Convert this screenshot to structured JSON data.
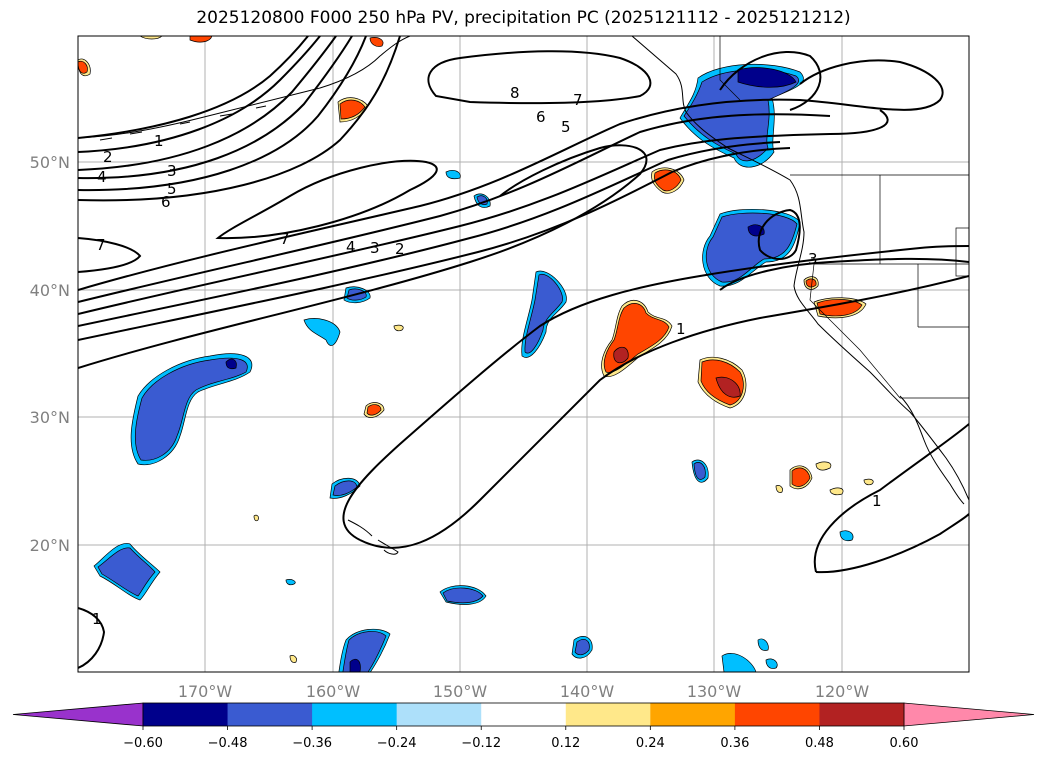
{
  "title": "2025120800 F000 250 hPa PV, precipitation PC (2025121112 - 2025121212)",
  "map": {
    "projection": "plate-carree",
    "lon_range": [
      -180,
      -110
    ],
    "lat_range": [
      10,
      60
    ],
    "gridlines": true,
    "lat_ticks": [
      {
        "value": 20,
        "label": "20°N"
      },
      {
        "value": 30,
        "label": "30°N"
      },
      {
        "value": 40,
        "label": "40°N"
      },
      {
        "value": 50,
        "label": "50°N"
      }
    ],
    "lon_ticks": [
      {
        "value": -170,
        "label": "170°W"
      },
      {
        "value": -160,
        "label": "160°W"
      },
      {
        "value": -150,
        "label": "150°W"
      },
      {
        "value": -140,
        "label": "140°W"
      },
      {
        "value": -130,
        "label": "130°W"
      },
      {
        "value": -120,
        "label": "120°W"
      }
    ]
  },
  "colorbar": {
    "extend": "both",
    "levels": [
      "−0.60",
      "−0.48",
      "−0.36",
      "−0.24",
      "−0.12",
      "0.12",
      "0.24",
      "0.36",
      "0.48",
      "0.60"
    ],
    "colors": [
      "#9932cc",
      "#00008b",
      "#3a5bd1",
      "#00bfff",
      "#ade0fa",
      "#ffffff",
      "#ffe88a",
      "#ffa500",
      "#ff4500",
      "#b22222",
      "#ff88aa"
    ]
  },
  "colors": {
    "neg_strong": "#00008b",
    "neg_mid": "#3a5bd1",
    "neg_light": "#00bfff",
    "neg_pale": "#ade0fa",
    "pos_pale": "#ffe88a",
    "pos_light": "#ffa500",
    "pos_mid": "#ff4500",
    "pos_strong": "#b22222",
    "grid": "#b0b0b0",
    "contour": "#000000"
  },
  "contour_labels": {
    "l1a": "1",
    "l2": "2",
    "l3": "3",
    "l4": "4",
    "l5": "5",
    "l6": "6",
    "l7a": "7",
    "l8": "8",
    "l7b": "7",
    "l6b": "6",
    "l5b": "5",
    "l7c": "7",
    "l4b": "4",
    "l3b": "3",
    "l2b": "2",
    "l3c": "3",
    "l1b": "1",
    "l1c": "1",
    "l1d": "1"
  }
}
